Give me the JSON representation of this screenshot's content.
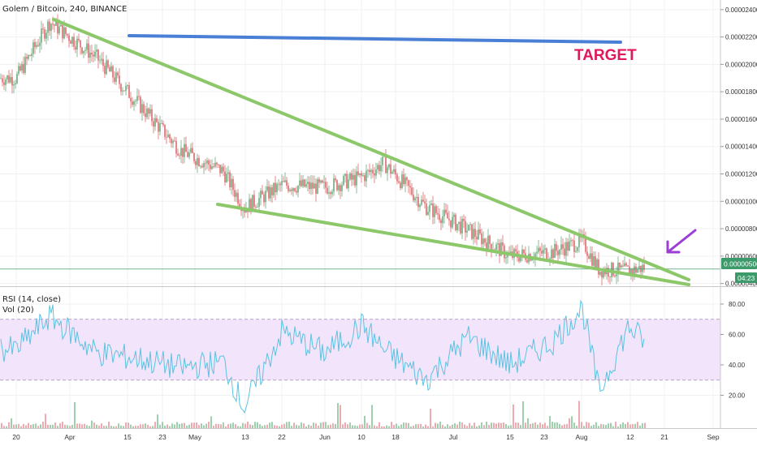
{
  "header": {
    "symbol_line": "Golem / Bitcoin, 240, BINANCE",
    "rsi_label": "RSI (14, close)",
    "vol_label": "Vol (20)"
  },
  "annotations": {
    "target_label": "TARGET"
  },
  "price_badge": {
    "last_price": "0.00000506",
    "countdown": "04:23"
  },
  "colors": {
    "wedge_lines": "#8cc86a",
    "target_line": "#4a7fd6",
    "target_text": "#e0195c",
    "arrow": "#9b3dd6",
    "price_line": "#3d9a6a",
    "rsi_line": "#5bc3e0",
    "rsi_band": "#f2e4fb",
    "candle_up": "#5a9e6b",
    "candle_down": "#d9555a"
  },
  "chart_data": [
    {
      "type": "line",
      "title": "Golem / Bitcoin, 240, BINANCE",
      "y_ticks": [
        "0.00002400",
        "0.00002200",
        "0.00002000",
        "0.00001800",
        "0.00001600",
        "0.00001400",
        "0.00001200",
        "0.00001000",
        "0.00000800",
        "0.00000600",
        "0.00000400"
      ],
      "y_range": [
        3.8e-06,
        2.47e-05
      ],
      "x_ticks": [
        "20",
        "Apr",
        "15",
        "23",
        "May",
        "13",
        "22",
        "Jun",
        "10",
        "18",
        "Jul",
        "15",
        "23",
        "Aug",
        "12",
        "21",
        "Sep"
      ],
      "x_points": [
        "2019-03-20",
        "2019-03-28",
        "2019-04-08",
        "2019-04-18",
        "2019-04-28",
        "2019-05-08",
        "2019-05-13",
        "2019-05-22",
        "2019-06-01",
        "2019-06-10",
        "2019-06-15",
        "2019-06-25",
        "2019-07-05",
        "2019-07-15",
        "2019-07-25",
        "2019-08-01",
        "2019-08-05",
        "2019-08-12",
        "2019-08-16"
      ],
      "series": [
        {
          "values": [
            1.9e-05,
            2.31e-05,
            2.05e-05,
            1.71e-05,
            1.37e-05,
            1.22e-05,
            9.5e-06,
            1.12e-05,
            1.1e-05,
            1.18e-05,
            1.28e-05,
            9.6e-06,
            7.9e-06,
            6e-06,
            6.3e-06,
            7.1e-06,
            5e-06,
            4.9e-06,
            5.2e-06
          ]
        }
      ],
      "last_value": 5.06e-06,
      "annotations": [
        "TARGET"
      ]
    },
    {
      "type": "line",
      "title": "RSI (14, close)",
      "y_ticks": [
        "80.00",
        "60.00",
        "40.00",
        "20.00"
      ],
      "y_range": [
        0,
        88
      ],
      "band": [
        30,
        70
      ],
      "x_points": [
        "2019-03-20",
        "2019-03-28",
        "2019-04-08",
        "2019-04-18",
        "2019-04-28",
        "2019-05-08",
        "2019-05-13",
        "2019-05-22",
        "2019-06-01",
        "2019-06-10",
        "2019-06-15",
        "2019-06-25",
        "2019-07-05",
        "2019-07-15",
        "2019-07-25",
        "2019-08-01",
        "2019-08-05",
        "2019-08-12",
        "2019-08-16"
      ],
      "series": [
        {
          "values": [
            50,
            72,
            48,
            44,
            38,
            42,
            12,
            62,
            48,
            66,
            50,
            30,
            58,
            40,
            55,
            78,
            22,
            65,
            55
          ]
        }
      ]
    }
  ]
}
